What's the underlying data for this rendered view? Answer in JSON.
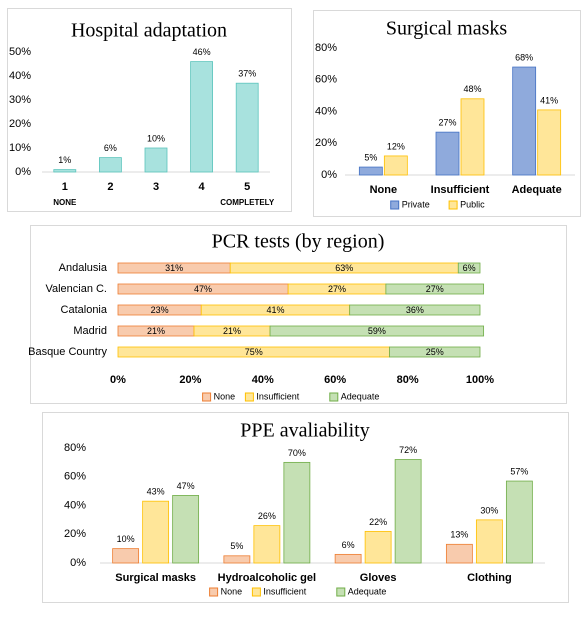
{
  "chart_data": [
    {
      "type": "bar",
      "title": "Hospital adaptation",
      "categories": [
        "1",
        "2",
        "3",
        "4",
        "5"
      ],
      "category_sublabels": [
        "NONE",
        null,
        null,
        null,
        "COMPLETELY"
      ],
      "values": [
        1,
        6,
        10,
        46,
        37
      ],
      "value_labels": [
        "1%",
        "6%",
        "10%",
        "46%",
        "37%"
      ],
      "color": "#a8e2de",
      "edgecolor": "#5bc4bc",
      "ylim": [
        0,
        50
      ],
      "yticks": [
        {
          "value": 0,
          "label": "0%"
        },
        {
          "value": 10,
          "label": "10%"
        },
        {
          "value": 20,
          "label": "20%"
        },
        {
          "value": 30,
          "label": "30%"
        },
        {
          "value": 40,
          "label": "40%"
        },
        {
          "value": 50,
          "label": "50%"
        }
      ]
    },
    {
      "type": "bar",
      "title": "Surgical masks",
      "categories": [
        "None",
        "Insufficient",
        "Adequate"
      ],
      "series": [
        {
          "name": "Private",
          "color": "#8faadc",
          "edgecolor": "#4472c4",
          "values": [
            5,
            27,
            68
          ],
          "value_labels": [
            "5%",
            "27%",
            "68%"
          ]
        },
        {
          "name": "Public",
          "color": "#ffe699",
          "edgecolor": "#ffc000",
          "values": [
            12,
            48,
            41
          ],
          "value_labels": [
            "12%",
            "48%",
            "41%"
          ]
        }
      ],
      "ylim": [
        0,
        80
      ],
      "yticks": [
        {
          "value": 0,
          "label": "0%"
        },
        {
          "value": 20,
          "label": "20%"
        },
        {
          "value": 40,
          "label": "40%"
        },
        {
          "value": 60,
          "label": "60%"
        },
        {
          "value": 80,
          "label": "80%"
        }
      ]
    },
    {
      "type": "hbar",
      "stacked": true,
      "title": "PCR tests (by region)",
      "categories": [
        "Andalusia",
        "Valencian C.",
        "Catalonia",
        "Madrid",
        "Basque Country"
      ],
      "series": [
        {
          "name": "None",
          "color": "#f8cbad",
          "edgecolor": "#ed7d31",
          "values": [
            31,
            47,
            23,
            21,
            0
          ],
          "value_labels": [
            "31%",
            "47%",
            "23%",
            "21%",
            null
          ]
        },
        {
          "name": "Insufficient",
          "color": "#ffe699",
          "edgecolor": "#ffc000",
          "values": [
            63,
            27,
            41,
            21,
            75
          ],
          "value_labels": [
            "63%",
            "27%",
            "41%",
            "21%",
            "75%"
          ]
        },
        {
          "name": "Adequate",
          "color": "#c5e0b4",
          "edgecolor": "#70ad47",
          "values": [
            6,
            27,
            36,
            59,
            25
          ],
          "value_labels": [
            "6%",
            "27%",
            "36%",
            "59%",
            "25%"
          ]
        }
      ],
      "xlim": [
        0,
        100
      ],
      "xticks": [
        {
          "value": 0,
          "label": "0%"
        },
        {
          "value": 20,
          "label": "20%"
        },
        {
          "value": 40,
          "label": "40%"
        },
        {
          "value": 60,
          "label": "60%"
        },
        {
          "value": 80,
          "label": "80%"
        },
        {
          "value": 100,
          "label": "100%"
        }
      ]
    },
    {
      "type": "bar",
      "title": "PPE avaliability",
      "categories": [
        "Surgical masks",
        "Hydroalcoholic gel",
        "Gloves",
        "Clothing"
      ],
      "series": [
        {
          "name": "None",
          "color": "#f8cbad",
          "edgecolor": "#ed7d31",
          "values": [
            10,
            5,
            6,
            13
          ],
          "value_labels": [
            "10%",
            "5%",
            "6%",
            "13%"
          ]
        },
        {
          "name": "Insufficient",
          "color": "#ffe699",
          "edgecolor": "#ffc000",
          "values": [
            43,
            26,
            22,
            30
          ],
          "value_labels": [
            "43%",
            "26%",
            "22%",
            "30%"
          ]
        },
        {
          "name": "Adequate",
          "color": "#c5e0b4",
          "edgecolor": "#70ad47",
          "values": [
            47,
            70,
            72,
            57
          ],
          "value_labels": [
            "47%",
            "70%",
            "72%",
            "57%"
          ]
        }
      ],
      "ylim": [
        0,
        80
      ],
      "yticks": [
        {
          "value": 0,
          "label": "0%"
        },
        {
          "value": 20,
          "label": "20%"
        },
        {
          "value": 40,
          "label": "40%"
        },
        {
          "value": 60,
          "label": "60%"
        },
        {
          "value": 80,
          "label": "80%"
        }
      ]
    }
  ]
}
